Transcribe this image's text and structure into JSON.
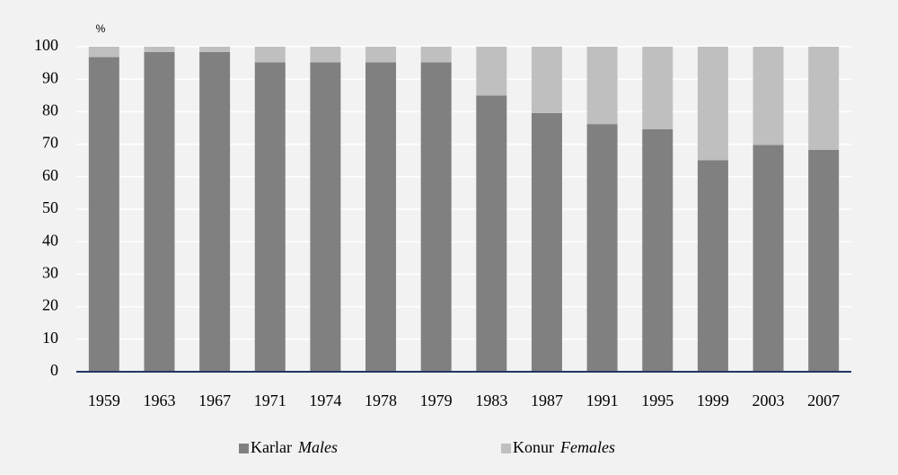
{
  "chart_data": {
    "type": "stacked_bar",
    "y_label": "%",
    "categories": [
      "1959",
      "1963",
      "1967",
      "1971",
      "1974",
      "1978",
      "1979",
      "1983",
      "1987",
      "1991",
      "1995",
      "1999",
      "2003",
      "2007"
    ],
    "series": [
      {
        "name": "Karlar",
        "name_en": "Males",
        "color": "#808080",
        "values": [
          96.8,
          98.4,
          98.4,
          95.2,
          95.2,
          95.2,
          95.2,
          85.0,
          79.6,
          76.2,
          74.6,
          65.1,
          69.8,
          68.3
        ]
      },
      {
        "name": "Konur",
        "name_en": "Females",
        "color": "#bfbfbf",
        "values": [
          3.2,
          1.6,
          1.6,
          4.8,
          4.8,
          4.8,
          4.8,
          15.0,
          20.4,
          23.8,
          25.4,
          34.9,
          30.2,
          31.7
        ]
      }
    ],
    "ylim": [
      0,
      100
    ],
    "yticks": [
      0,
      10,
      20,
      30,
      40,
      50,
      60,
      70,
      80,
      90,
      100
    ],
    "grid": true
  }
}
